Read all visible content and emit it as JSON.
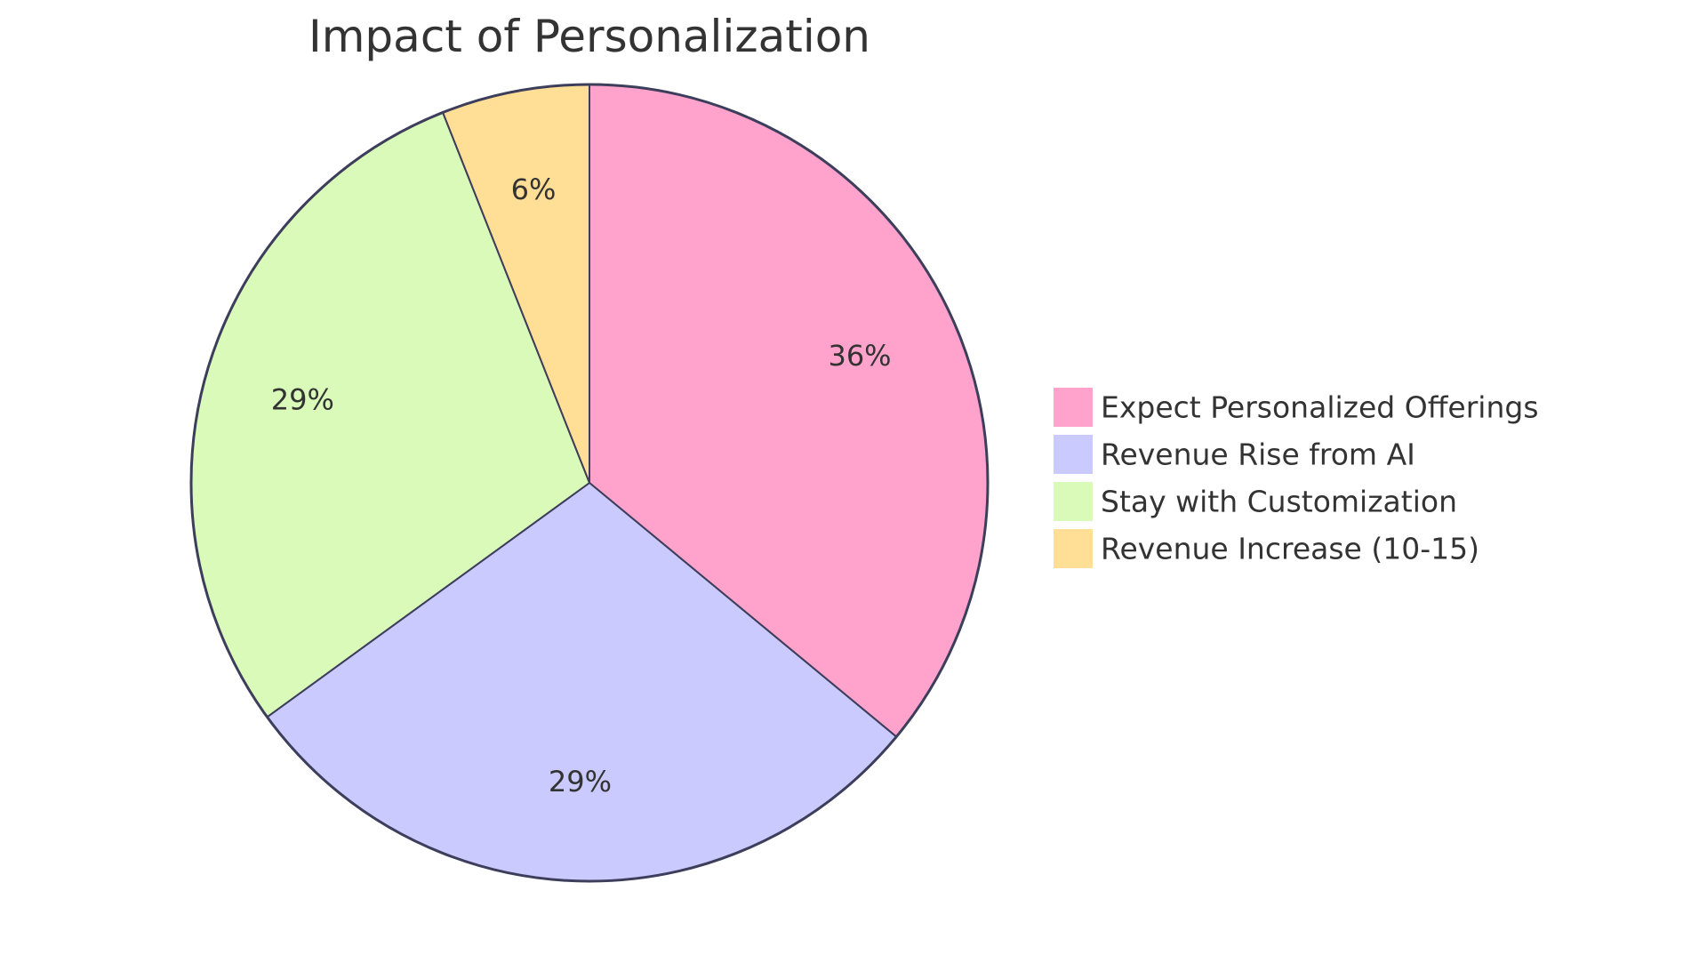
{
  "chart_data": {
    "type": "pie",
    "title": "Impact of Personalization",
    "slices": [
      {
        "label": "Expect Personalized Offerings",
        "value": 36,
        "display": "36%",
        "color": "#FFA3CC"
      },
      {
        "label": "Revenue Rise from AI",
        "value": 29,
        "display": "29%",
        "color": "#CACAFE"
      },
      {
        "label": "Stay with Customization",
        "value": 29,
        "display": "29%",
        "color": "#DAFAB9"
      },
      {
        "label": "Revenue Increase (10-15)",
        "value": 6,
        "display": "6%",
        "color": "#FFDE95"
      }
    ],
    "legend_position": "right",
    "stroke_color": "#3D3D5C"
  }
}
